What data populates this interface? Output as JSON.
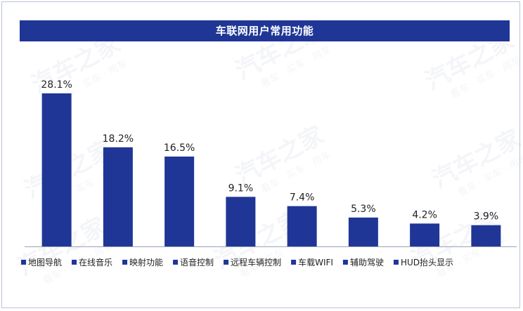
{
  "chart_data": {
    "type": "bar",
    "title": "车联网用户常用功能",
    "categories": [
      "地图导航",
      "在线音乐",
      "映射功能",
      "语音控制",
      "远程车辆控制",
      "车载WIFI",
      "辅助驾驶",
      "HUD抬头显示"
    ],
    "values": [
      28.1,
      18.2,
      16.5,
      9.1,
      7.4,
      5.3,
      4.2,
      3.9
    ],
    "value_labels": [
      "28.1%",
      "18.2%",
      "16.5%",
      "9.1%",
      "7.4%",
      "5.3%",
      "4.2%",
      "3.9%"
    ],
    "xlabel": "",
    "ylabel": "",
    "ylim": [
      0,
      30
    ],
    "grid": false,
    "legend_position": "bottom",
    "bar_color": "#1f3696"
  },
  "watermark": {
    "brand": "汽车之家",
    "tagline": "看车 · 买车 · 用车"
  }
}
